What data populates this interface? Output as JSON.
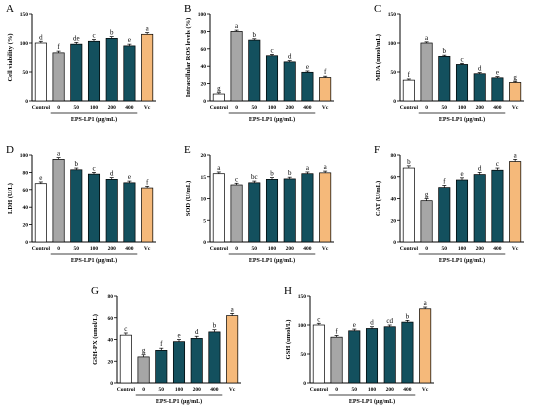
{
  "figure": {
    "x_tick_labels": [
      "Control",
      "0",
      "50",
      "100",
      "200",
      "400",
      "Vc"
    ],
    "group_label": "EPS-LP1 (μg/mL)"
  },
  "colors": {
    "control": "#ffffff",
    "model": "#a6a6a6",
    "treatment": "#13505e",
    "positive": "#f5b97a",
    "axis": "#000000"
  },
  "chart_data": [
    {
      "panel": "A",
      "type": "bar",
      "categories": [
        "Control",
        "0",
        "50",
        "100",
        "200",
        "400",
        "Vc"
      ],
      "values": [
        100,
        83,
        98,
        103,
        108,
        95,
        115
      ],
      "errors": [
        3,
        3,
        3,
        3,
        3,
        3,
        3
      ],
      "significance": [
        "d",
        "f",
        "de",
        "c",
        "b",
        "e",
        "a"
      ],
      "xlabel": "EPS-LP1 (μg/mL)",
      "ylabel": "Cell viability (%)",
      "ylim": [
        0,
        150
      ],
      "yticks": [
        0,
        50,
        100,
        150
      ]
    },
    {
      "panel": "B",
      "type": "bar",
      "categories": [
        "Control",
        "0",
        "50",
        "100",
        "200",
        "400",
        "Vc"
      ],
      "values": [
        8,
        80,
        70,
        52,
        45,
        33,
        27
      ],
      "errors": [
        1.5,
        1.5,
        1.5,
        1.5,
        1.5,
        1.5,
        1.5
      ],
      "significance": [
        "g",
        "a",
        "b",
        "c",
        "d",
        "e",
        "f"
      ],
      "xlabel": "EPS-LP1 (μg/mL)",
      "ylabel": "Intracellular ROS levels (%)",
      "ylim": [
        0,
        100
      ],
      "yticks": [
        0,
        20,
        40,
        60,
        80,
        100
      ]
    },
    {
      "panel": "C",
      "type": "bar",
      "categories": [
        "Control",
        "0",
        "50",
        "100",
        "200",
        "400",
        "Vc"
      ],
      "values": [
        36,
        100,
        77,
        63,
        47,
        40,
        32
      ],
      "errors": [
        2,
        2,
        2,
        2,
        2,
        2,
        2
      ],
      "significance": [
        "f",
        "a",
        "b",
        "c",
        "d",
        "e",
        "g"
      ],
      "xlabel": "EPS-LP1 (μg/mL)",
      "ylabel": "MDA (nmol/mL)",
      "ylim": [
        0,
        150
      ],
      "yticks": [
        0,
        50,
        100,
        150
      ]
    },
    {
      "panel": "D",
      "type": "bar",
      "categories": [
        "Control",
        "0",
        "50",
        "100",
        "200",
        "400",
        "Vc"
      ],
      "values": [
        67,
        95,
        83,
        78,
        72,
        68,
        62
      ],
      "errors": [
        2,
        2,
        2,
        2,
        2,
        2,
        2
      ],
      "significance": [
        "e",
        "a",
        "b",
        "c",
        "d",
        "e",
        "f"
      ],
      "xlabel": "EPS-LP1 (μg/mL)",
      "ylabel": "LDH (U/L)",
      "ylim": [
        0,
        100
      ],
      "yticks": [
        0,
        20,
        40,
        60,
        80,
        100
      ]
    },
    {
      "panel": "E",
      "type": "bar",
      "categories": [
        "Control",
        "0",
        "50",
        "100",
        "200",
        "400",
        "Vc"
      ],
      "values": [
        15.7,
        13.1,
        13.6,
        14.4,
        14.5,
        15.7,
        15.9
      ],
      "errors": [
        0.4,
        0.4,
        0.4,
        0.4,
        0.4,
        0.4,
        0.4
      ],
      "significance": [
        "a",
        "c",
        "bc",
        "b",
        "b",
        "a",
        "a"
      ],
      "xlabel": "EPS-LP1 (μg/mL)",
      "ylabel": "SOD (U/mL)",
      "ylim": [
        0,
        20
      ],
      "yticks": [
        0,
        5,
        10,
        15,
        20
      ]
    },
    {
      "panel": "F",
      "type": "bar",
      "categories": [
        "Control",
        "0",
        "50",
        "100",
        "200",
        "400",
        "Vc"
      ],
      "values": [
        68,
        38,
        50,
        57,
        62,
        66,
        74
      ],
      "errors": [
        2,
        2,
        2,
        2,
        2,
        2,
        2
      ],
      "significance": [
        "b",
        "g",
        "f",
        "e",
        "d",
        "c",
        "a"
      ],
      "xlabel": "EPS-LP1 (μg/mL)",
      "ylabel": "CAT (U/mL)",
      "ylim": [
        0,
        80
      ],
      "yticks": [
        0,
        20,
        40,
        60,
        80
      ]
    },
    {
      "panel": "G",
      "type": "bar",
      "categories": [
        "Control",
        "0",
        "50",
        "100",
        "200",
        "400",
        "Vc"
      ],
      "values": [
        44,
        24,
        30,
        38,
        41,
        47,
        62
      ],
      "errors": [
        2,
        2,
        2,
        2,
        2,
        2,
        2
      ],
      "significance": [
        "c",
        "g",
        "f",
        "e",
        "d",
        "b",
        "a"
      ],
      "xlabel": "EPS-LP1 (μg/mL)",
      "ylabel": "GSH-PX (umol/L)",
      "ylim": [
        0,
        80
      ],
      "yticks": [
        0,
        20,
        40,
        60,
        80
      ]
    },
    {
      "panel": "H",
      "type": "bar",
      "categories": [
        "Control",
        "0",
        "50",
        "100",
        "200",
        "400",
        "Vc"
      ],
      "values": [
        100,
        79,
        90,
        94,
        97,
        105,
        128
      ],
      "errors": [
        3,
        3,
        3,
        3,
        3,
        3,
        3
      ],
      "significance": [
        "c",
        "f",
        "e",
        "d",
        "cd",
        "b",
        "a"
      ],
      "xlabel": "EPS-LP1 (μg/mL)",
      "ylabel": "GSH (umol/L)",
      "ylim": [
        0,
        150
      ],
      "yticks": [
        0,
        50,
        100,
        150
      ]
    }
  ]
}
